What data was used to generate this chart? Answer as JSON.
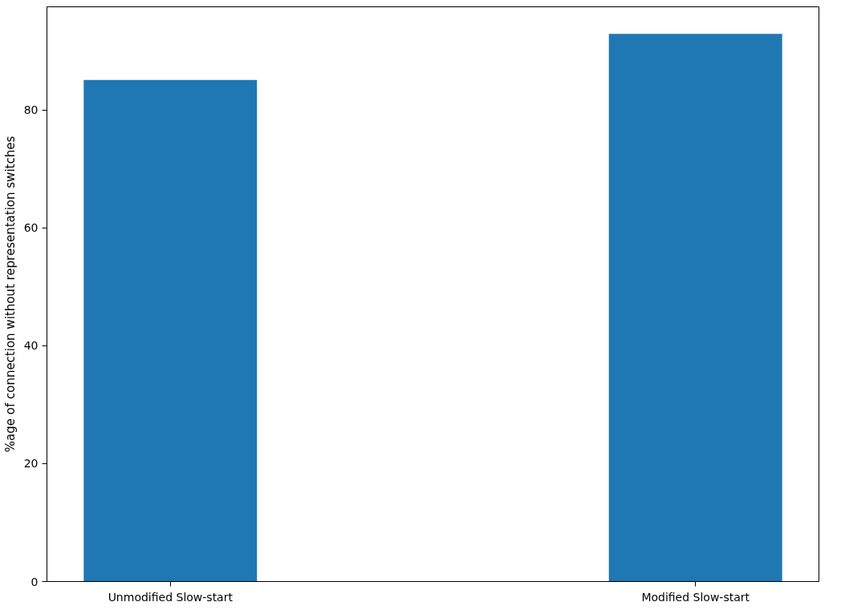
{
  "chart_data": {
    "type": "bar",
    "ylabel": "%age of connection without representation switches",
    "categories": [
      "Unmodified Slow-start",
      "Modified Slow-start"
    ],
    "values": [
      85.1,
      92.9
    ],
    "color": "#1f77b4",
    "ylim": [
      0,
      97.5
    ],
    "yticks": [
      0,
      20,
      40,
      60,
      80
    ],
    "grid": false
  }
}
